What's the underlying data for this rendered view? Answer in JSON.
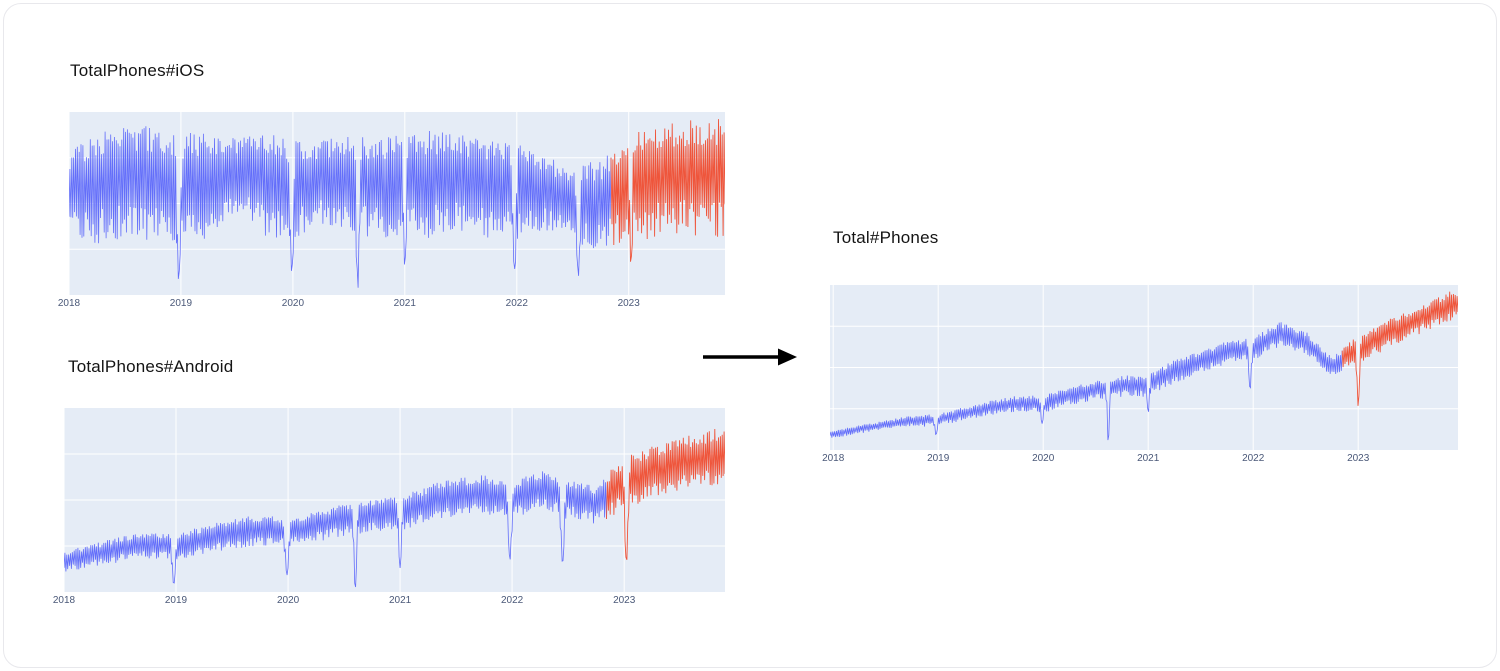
{
  "canvas": {
    "background": "#ffffff",
    "card_border": "#e8e8ec"
  },
  "colors": {
    "historical": "#636efa",
    "forecast": "#ef553b",
    "plot_background": "#e5ecf6",
    "grid": "#ffffff",
    "tick_label": "#4a5878",
    "title_text": "#141414",
    "arrow": "#000000"
  },
  "arrow": {
    "icon": "right-arrow",
    "direction": "right"
  },
  "chart_data": [
    {
      "type": "line",
      "title": "TotalPhones#iOS",
      "xlabel": "",
      "ylabel": "",
      "x_ticks": [
        2018,
        2019,
        2020,
        2021,
        2022,
        2023
      ],
      "x_range": [
        2018,
        2023.86
      ],
      "y_range": [
        0,
        100
      ],
      "y_axis_visible": false,
      "grid": true,
      "legend": "none",
      "forecast_start": 2022.85,
      "series": [
        {
          "name": "historical",
          "color": "#636efa"
        },
        {
          "name": "forecast",
          "color": "#ef553b"
        }
      ],
      "envelope_x": [
        2018,
        2018.25,
        2018.5,
        2018.75,
        2019,
        2019.25,
        2019.5,
        2019.75,
        2020,
        2020.25,
        2020.5,
        2020.75,
        2021,
        2021.25,
        2021.5,
        2021.75,
        2022,
        2022.25,
        2022.5,
        2022.75,
        2023,
        2023.25,
        2023.5,
        2023.75,
        2023.9
      ],
      "envelope_top": [
        78,
        90,
        93,
        92,
        88,
        90,
        86,
        90,
        86,
        84,
        88,
        86,
        88,
        90,
        88,
        86,
        84,
        76,
        70,
        74,
        92,
        94,
        95,
        97,
        95
      ],
      "envelope_bottom": [
        30,
        26,
        30,
        28,
        26,
        30,
        45,
        30,
        28,
        38,
        32,
        30,
        28,
        30,
        34,
        30,
        30,
        34,
        28,
        22,
        28,
        30,
        32,
        30,
        30
      ],
      "dips": [
        {
          "x": 2018.98,
          "v": 8,
          "w": 0.018
        },
        {
          "x": 2019.99,
          "v": 12,
          "w": 0.018
        },
        {
          "x": 2020.58,
          "v": 3,
          "w": 0.015
        },
        {
          "x": 2021.0,
          "v": 15,
          "w": 0.015
        },
        {
          "x": 2021.98,
          "v": 14,
          "w": 0.018
        },
        {
          "x": 2022.55,
          "v": 10,
          "w": 0.018
        },
        {
          "x": 2023.02,
          "v": 16,
          "w": 0.015
        }
      ]
    },
    {
      "type": "line",
      "title": "TotalPhones#Android",
      "xlabel": "",
      "ylabel": "",
      "x_ticks": [
        2018,
        2019,
        2020,
        2021,
        2022,
        2023
      ],
      "x_range": [
        2018,
        2023.9
      ],
      "y_range": [
        0,
        100
      ],
      "y_axis_visible": false,
      "grid": true,
      "legend": "none",
      "forecast_start": 2022.85,
      "series": [
        {
          "name": "historical",
          "color": "#636efa"
        },
        {
          "name": "forecast",
          "color": "#ef553b"
        }
      ],
      "envelope_x": [
        2018,
        2018.25,
        2018.5,
        2018.75,
        2019,
        2019.25,
        2019.5,
        2019.75,
        2020,
        2020.25,
        2020.5,
        2020.75,
        2021,
        2021.25,
        2021.5,
        2021.75,
        2022,
        2022.25,
        2022.5,
        2022.75,
        2023,
        2023.25,
        2023.5,
        2023.75,
        2023.9
      ],
      "envelope_top": [
        22,
        26,
        30,
        33,
        32,
        36,
        40,
        42,
        40,
        44,
        48,
        50,
        52,
        58,
        62,
        64,
        60,
        66,
        62,
        58,
        74,
        80,
        84,
        88,
        90
      ],
      "envelope_bottom": [
        10,
        13,
        16,
        18,
        17,
        20,
        23,
        25,
        24,
        27,
        30,
        32,
        33,
        37,
        40,
        42,
        40,
        44,
        40,
        36,
        44,
        50,
        54,
        56,
        58
      ],
      "dips": [
        {
          "x": 2018.98,
          "v": 4,
          "w": 0.018
        },
        {
          "x": 2019.99,
          "v": 9,
          "w": 0.018
        },
        {
          "x": 2020.6,
          "v": 1,
          "w": 0.015
        },
        {
          "x": 2021.0,
          "v": 13,
          "w": 0.015
        },
        {
          "x": 2021.98,
          "v": 17,
          "w": 0.018
        },
        {
          "x": 2022.45,
          "v": 15,
          "w": 0.018
        },
        {
          "x": 2023.02,
          "v": 16,
          "w": 0.018
        }
      ]
    },
    {
      "type": "line",
      "title": "Total#Phones",
      "xlabel": "",
      "ylabel": "",
      "x_ticks": [
        2018,
        2019,
        2020,
        2021,
        2022,
        2023
      ],
      "x_range": [
        2017.97,
        2023.95
      ],
      "y_range": [
        0,
        100
      ],
      "y_axis_visible": false,
      "grid": true,
      "legend": "none",
      "forecast_start": 2022.85,
      "series": [
        {
          "name": "historical",
          "color": "#636efa"
        },
        {
          "name": "forecast",
          "color": "#ef553b"
        }
      ],
      "envelope_x": [
        2018,
        2018.25,
        2018.5,
        2018.75,
        2019,
        2019.25,
        2019.5,
        2019.75,
        2020,
        2020.25,
        2020.5,
        2020.75,
        2021,
        2021.25,
        2021.5,
        2021.75,
        2022,
        2022.25,
        2022.5,
        2022.75,
        2023,
        2023.25,
        2023.5,
        2023.75,
        2023.9
      ],
      "envelope_top": [
        12,
        15,
        18,
        21,
        22,
        26,
        30,
        33,
        33,
        38,
        42,
        45,
        46,
        55,
        60,
        66,
        68,
        78,
        72,
        56,
        70,
        78,
        85,
        93,
        97
      ],
      "envelope_bottom": [
        7,
        10,
        12,
        14,
        14,
        18,
        21,
        23,
        22,
        27,
        30,
        32,
        32,
        40,
        46,
        52,
        54,
        62,
        58,
        44,
        52,
        60,
        68,
        74,
        78
      ],
      "dips": [
        {
          "x": 2018.98,
          "v": 9,
          "w": 0.015
        },
        {
          "x": 2019.99,
          "v": 16,
          "w": 0.015
        },
        {
          "x": 2020.62,
          "v": 3,
          "w": 0.012
        },
        {
          "x": 2021.0,
          "v": 22,
          "w": 0.012
        },
        {
          "x": 2021.97,
          "v": 36,
          "w": 0.015
        },
        {
          "x": 2023.0,
          "v": 26,
          "w": 0.015
        }
      ]
    }
  ]
}
